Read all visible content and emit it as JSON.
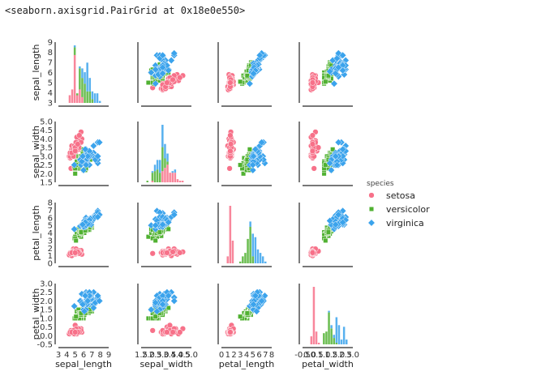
{
  "header": {
    "repr_text": "<seaborn.axisgrid.PairGrid at 0x18e0e550>"
  },
  "chart_data": {
    "type": "scatter",
    "title": "",
    "variables": [
      "sepal_length",
      "sepal_width",
      "petal_length",
      "petal_width"
    ],
    "ranges": {
      "sepal_length": [
        3,
        9
      ],
      "sepal_width": [
        1.5,
        5.0
      ],
      "petal_length": [
        0,
        8
      ],
      "petal_width": [
        -0.5,
        3.0
      ]
    },
    "ticks": {
      "sepal_length": [
        3,
        4,
        5,
        6,
        7,
        8,
        9
      ],
      "sepal_width": [
        1.5,
        2.0,
        2.5,
        3.0,
        3.5,
        4.0,
        4.5,
        5.0
      ],
      "petal_length": [
        0,
        1,
        2,
        3,
        4,
        5,
        6,
        7,
        8
      ],
      "petal_width": [
        -0.5,
        0.0,
        0.5,
        1.0,
        1.5,
        2.0,
        2.5,
        3.0
      ]
    },
    "tick_labels": {
      "sepal_length": [
        "3",
        "4",
        "5",
        "6",
        "7",
        "8",
        "9"
      ],
      "sepal_width": [
        "1.5",
        "2.0",
        "2.5",
        "3.0",
        "3.5",
        "4.0",
        "4.5",
        "5.0"
      ],
      "petal_length": [
        "0",
        "1",
        "2",
        "3",
        "4",
        "5",
        "6",
        "7",
        "8"
      ],
      "petal_width": [
        "-0.5",
        "0.0",
        "0.5",
        "1.0",
        "1.5",
        "2.0",
        "2.5",
        "3.0"
      ]
    },
    "diagonal": "stacked histogram",
    "grid": false,
    "legend": {
      "title": "species",
      "placement": "right",
      "entries": [
        {
          "name": "setosa",
          "color": "#f77189",
          "marker": "circle"
        },
        {
          "name": "versicolor",
          "color": "#50b131",
          "marker": "square"
        },
        {
          "name": "virginica",
          "color": "#3ba3ec",
          "marker": "diamond"
        }
      ]
    },
    "series": [
      {
        "name": "setosa",
        "points": [
          [
            5.1,
            3.5,
            1.4,
            0.2
          ],
          [
            4.9,
            3.0,
            1.4,
            0.2
          ],
          [
            4.7,
            3.2,
            1.3,
            0.2
          ],
          [
            4.6,
            3.1,
            1.5,
            0.2
          ],
          [
            5.0,
            3.6,
            1.4,
            0.2
          ],
          [
            5.4,
            3.9,
            1.7,
            0.4
          ],
          [
            4.6,
            3.4,
            1.4,
            0.3
          ],
          [
            5.0,
            3.4,
            1.5,
            0.2
          ],
          [
            4.4,
            2.9,
            1.4,
            0.2
          ],
          [
            4.9,
            3.1,
            1.5,
            0.1
          ],
          [
            5.4,
            3.7,
            1.5,
            0.2
          ],
          [
            4.8,
            3.4,
            1.6,
            0.2
          ],
          [
            4.8,
            3.0,
            1.4,
            0.1
          ],
          [
            4.3,
            3.0,
            1.1,
            0.1
          ],
          [
            5.8,
            4.0,
            1.2,
            0.2
          ],
          [
            5.7,
            4.4,
            1.5,
            0.4
          ],
          [
            5.4,
            3.9,
            1.3,
            0.4
          ],
          [
            5.1,
            3.5,
            1.4,
            0.3
          ],
          [
            5.7,
            3.8,
            1.7,
            0.3
          ],
          [
            5.1,
            3.8,
            1.5,
            0.3
          ],
          [
            5.4,
            3.4,
            1.7,
            0.2
          ],
          [
            5.1,
            3.7,
            1.5,
            0.4
          ],
          [
            4.6,
            3.6,
            1.0,
            0.2
          ],
          [
            5.1,
            3.3,
            1.7,
            0.5
          ],
          [
            4.8,
            3.4,
            1.9,
            0.2
          ],
          [
            5.0,
            3.0,
            1.6,
            0.2
          ],
          [
            5.0,
            3.4,
            1.6,
            0.4
          ],
          [
            5.2,
            3.5,
            1.5,
            0.2
          ],
          [
            5.2,
            3.4,
            1.4,
            0.2
          ],
          [
            4.7,
            3.2,
            1.6,
            0.2
          ],
          [
            4.8,
            3.1,
            1.6,
            0.2
          ],
          [
            5.4,
            3.4,
            1.5,
            0.4
          ],
          [
            5.2,
            4.1,
            1.5,
            0.1
          ],
          [
            5.5,
            4.2,
            1.4,
            0.2
          ],
          [
            4.9,
            3.1,
            1.5,
            0.2
          ],
          [
            5.0,
            3.2,
            1.2,
            0.2
          ],
          [
            5.5,
            3.5,
            1.3,
            0.2
          ],
          [
            4.9,
            3.6,
            1.4,
            0.1
          ],
          [
            4.4,
            3.0,
            1.3,
            0.2
          ],
          [
            5.1,
            3.4,
            1.5,
            0.2
          ],
          [
            5.0,
            3.5,
            1.3,
            0.3
          ],
          [
            4.5,
            2.3,
            1.3,
            0.3
          ],
          [
            4.4,
            3.2,
            1.3,
            0.2
          ],
          [
            5.0,
            3.5,
            1.6,
            0.6
          ],
          [
            5.1,
            3.8,
            1.9,
            0.4
          ],
          [
            4.8,
            3.0,
            1.4,
            0.3
          ],
          [
            5.1,
            3.8,
            1.6,
            0.2
          ],
          [
            4.6,
            3.2,
            1.4,
            0.2
          ],
          [
            5.3,
            3.7,
            1.5,
            0.2
          ],
          [
            5.0,
            3.3,
            1.4,
            0.2
          ]
        ]
      },
      {
        "name": "versicolor",
        "points": [
          [
            7.0,
            3.2,
            4.7,
            1.4
          ],
          [
            6.4,
            3.2,
            4.5,
            1.5
          ],
          [
            6.9,
            3.1,
            4.9,
            1.5
          ],
          [
            5.5,
            2.3,
            4.0,
            1.3
          ],
          [
            6.5,
            2.8,
            4.6,
            1.5
          ],
          [
            5.7,
            2.8,
            4.5,
            1.3
          ],
          [
            6.3,
            3.3,
            4.7,
            1.6
          ],
          [
            4.9,
            2.4,
            3.3,
            1.0
          ],
          [
            6.6,
            2.9,
            4.6,
            1.3
          ],
          [
            5.2,
            2.7,
            3.9,
            1.4
          ],
          [
            5.0,
            2.0,
            3.5,
            1.0
          ],
          [
            5.9,
            3.0,
            4.2,
            1.5
          ],
          [
            6.0,
            2.2,
            4.0,
            1.0
          ],
          [
            6.1,
            2.9,
            4.7,
            1.4
          ],
          [
            5.6,
            2.9,
            3.6,
            1.3
          ],
          [
            6.7,
            3.1,
            4.4,
            1.4
          ],
          [
            5.6,
            3.0,
            4.5,
            1.5
          ],
          [
            5.8,
            2.7,
            4.1,
            1.0
          ],
          [
            6.2,
            2.2,
            4.5,
            1.5
          ],
          [
            5.6,
            2.5,
            3.9,
            1.1
          ],
          [
            5.9,
            3.2,
            4.8,
            1.8
          ],
          [
            6.1,
            2.8,
            4.0,
            1.3
          ],
          [
            6.3,
            2.5,
            4.9,
            1.5
          ],
          [
            6.1,
            2.8,
            4.7,
            1.2
          ],
          [
            6.4,
            2.9,
            4.3,
            1.3
          ],
          [
            6.6,
            3.0,
            4.4,
            1.4
          ],
          [
            6.8,
            2.8,
            4.8,
            1.4
          ],
          [
            6.7,
            3.0,
            5.0,
            1.7
          ],
          [
            6.0,
            2.9,
            4.5,
            1.5
          ],
          [
            5.7,
            2.6,
            3.5,
            1.0
          ],
          [
            5.5,
            2.4,
            3.8,
            1.1
          ],
          [
            5.5,
            2.4,
            3.7,
            1.0
          ],
          [
            5.8,
            2.7,
            3.9,
            1.2
          ],
          [
            6.0,
            2.7,
            5.1,
            1.6
          ],
          [
            5.4,
            3.0,
            4.5,
            1.5
          ],
          [
            6.0,
            3.4,
            4.5,
            1.6
          ],
          [
            6.7,
            3.1,
            4.7,
            1.5
          ],
          [
            6.3,
            2.3,
            4.4,
            1.3
          ],
          [
            5.6,
            3.0,
            4.1,
            1.3
          ],
          [
            5.5,
            2.5,
            4.0,
            1.3
          ],
          [
            5.5,
            2.6,
            4.4,
            1.2
          ],
          [
            6.1,
            3.0,
            4.6,
            1.4
          ],
          [
            5.8,
            2.6,
            4.0,
            1.2
          ],
          [
            5.0,
            2.3,
            3.3,
            1.0
          ],
          [
            5.6,
            2.7,
            4.2,
            1.3
          ],
          [
            5.7,
            3.0,
            4.2,
            1.2
          ],
          [
            5.7,
            2.9,
            4.2,
            1.3
          ],
          [
            6.2,
            2.9,
            4.3,
            1.3
          ],
          [
            5.1,
            2.5,
            3.0,
            1.1
          ],
          [
            5.7,
            2.8,
            4.1,
            1.3
          ]
        ]
      },
      {
        "name": "virginica",
        "points": [
          [
            6.3,
            3.3,
            6.0,
            2.5
          ],
          [
            5.8,
            2.7,
            5.1,
            1.9
          ],
          [
            7.1,
            3.0,
            5.9,
            2.1
          ],
          [
            6.3,
            2.9,
            5.6,
            1.8
          ],
          [
            6.5,
            3.0,
            5.8,
            2.2
          ],
          [
            7.6,
            3.0,
            6.6,
            2.1
          ],
          [
            4.9,
            2.5,
            4.5,
            1.7
          ],
          [
            7.3,
            2.9,
            6.3,
            1.8
          ],
          [
            6.7,
            2.5,
            5.8,
            1.8
          ],
          [
            7.2,
            3.6,
            6.1,
            2.5
          ],
          [
            6.5,
            3.2,
            5.1,
            2.0
          ],
          [
            6.4,
            2.7,
            5.3,
            1.9
          ],
          [
            6.8,
            3.0,
            5.5,
            2.1
          ],
          [
            5.7,
            2.5,
            5.0,
            2.0
          ],
          [
            5.8,
            2.8,
            5.1,
            2.4
          ],
          [
            6.4,
            3.2,
            5.3,
            2.3
          ],
          [
            6.5,
            3.0,
            5.5,
            1.8
          ],
          [
            7.7,
            3.8,
            6.7,
            2.2
          ],
          [
            7.7,
            2.6,
            6.9,
            2.3
          ],
          [
            6.0,
            2.2,
            5.0,
            1.5
          ],
          [
            6.9,
            3.2,
            5.7,
            2.3
          ],
          [
            5.6,
            2.8,
            4.9,
            2.0
          ],
          [
            7.7,
            2.8,
            6.7,
            2.0
          ],
          [
            6.3,
            2.7,
            4.9,
            1.8
          ],
          [
            6.7,
            3.3,
            5.7,
            2.1
          ],
          [
            7.2,
            3.2,
            6.0,
            1.8
          ],
          [
            6.2,
            2.8,
            4.8,
            1.8
          ],
          [
            6.1,
            3.0,
            4.9,
            1.8
          ],
          [
            6.4,
            2.8,
            5.6,
            2.1
          ],
          [
            7.2,
            3.0,
            5.8,
            1.6
          ],
          [
            7.4,
            2.8,
            6.1,
            1.9
          ],
          [
            7.9,
            3.8,
            6.4,
            2.0
          ],
          [
            6.4,
            2.8,
            5.6,
            2.2
          ],
          [
            6.3,
            2.8,
            5.1,
            1.5
          ],
          [
            6.1,
            2.6,
            5.6,
            1.4
          ],
          [
            7.7,
            3.0,
            6.1,
            2.3
          ],
          [
            6.3,
            3.4,
            5.6,
            2.4
          ],
          [
            6.4,
            3.1,
            5.5,
            1.8
          ],
          [
            6.0,
            3.0,
            4.8,
            1.8
          ],
          [
            6.9,
            3.1,
            5.4,
            2.1
          ],
          [
            6.7,
            3.1,
            5.6,
            2.4
          ],
          [
            6.9,
            3.1,
            5.1,
            2.3
          ],
          [
            5.8,
            2.7,
            5.1,
            1.9
          ],
          [
            6.8,
            3.2,
            5.9,
            2.3
          ],
          [
            6.7,
            3.3,
            5.7,
            2.5
          ],
          [
            6.7,
            3.0,
            5.2,
            2.3
          ],
          [
            6.3,
            2.5,
            5.0,
            1.9
          ],
          [
            6.5,
            3.0,
            5.2,
            2.0
          ],
          [
            6.2,
            3.4,
            5.4,
            2.3
          ],
          [
            5.9,
            3.0,
            5.1,
            1.8
          ]
        ]
      }
    ]
  }
}
